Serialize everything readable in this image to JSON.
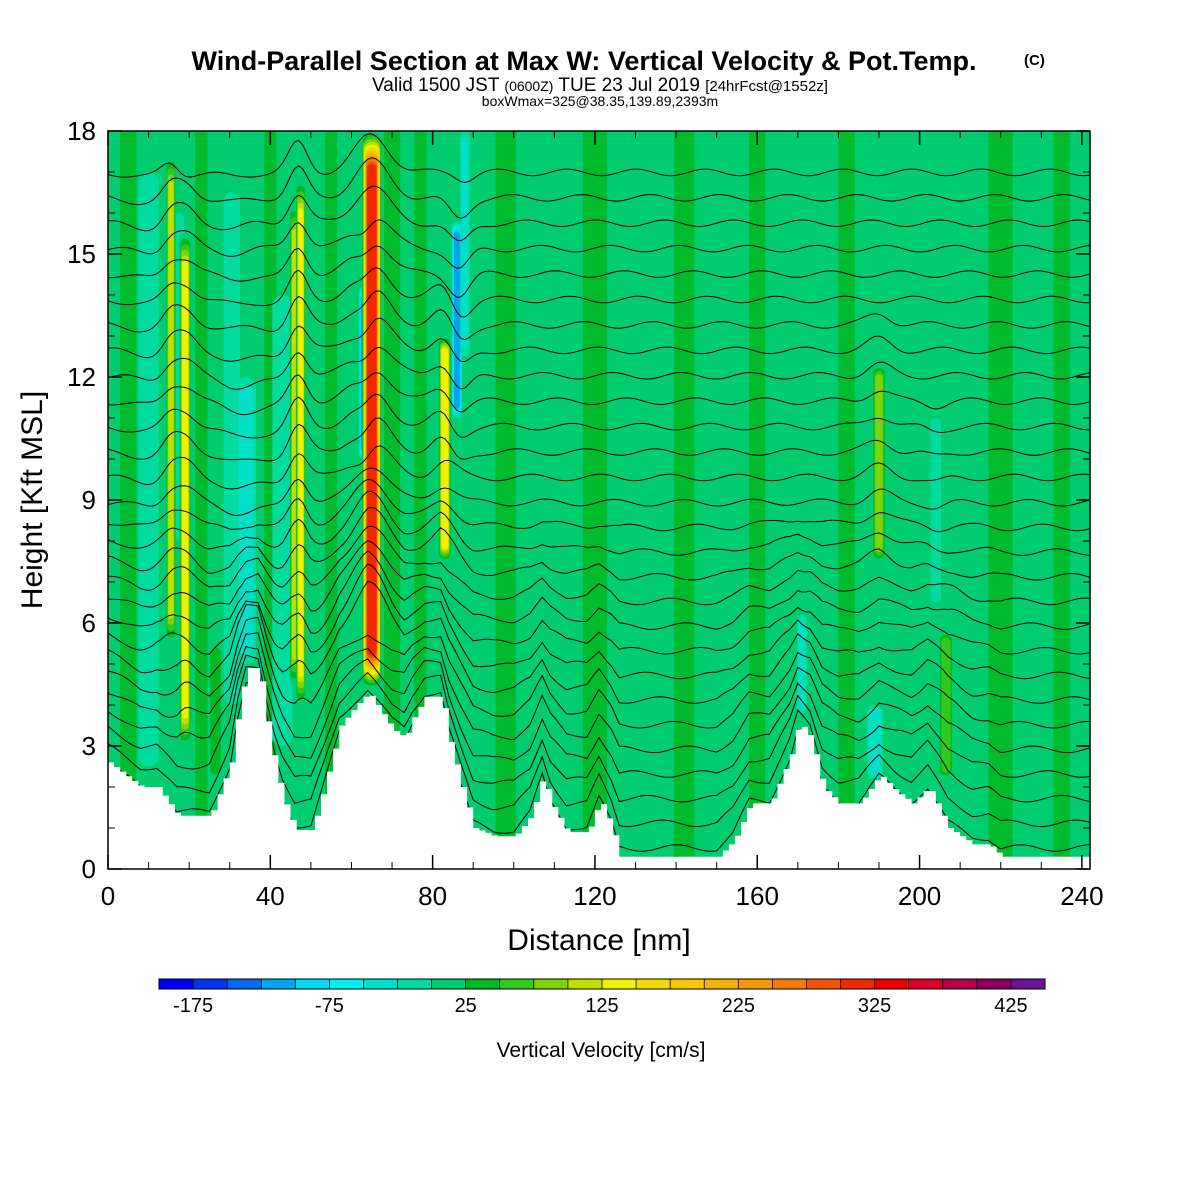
{
  "title": {
    "main": "Wind-Parallel Section at Max W: Vertical Velocity & Pot.Temp.",
    "copyright": "(C)",
    "valid_prefix": "Valid 1500 JST",
    "valid_utc": "(0600Z)",
    "valid_date": "TUE 23 Jul 2019",
    "forecast": "[24hrFcst@1552z]",
    "box_info": "boxWmax=325@38.35,139.89,2393m"
  },
  "chart_data": {
    "type": "heatmap",
    "xlabel": "Distance [nm]",
    "ylabel": "Height [Kft MSL]",
    "xlim": [
      0,
      242
    ],
    "ylim": [
      0,
      18
    ],
    "x_ticks": [
      "0",
      "40",
      "80",
      "120",
      "160",
      "200",
      "240"
    ],
    "y_ticks": [
      "0",
      "3",
      "6",
      "9",
      "12",
      "15",
      "18"
    ],
    "x_tick_values": [
      0,
      40,
      80,
      120,
      160,
      200,
      240
    ],
    "y_tick_values": [
      0,
      3,
      6,
      9,
      12,
      15,
      18
    ],
    "background_value": 0,
    "terrain_kft": [
      [
        0,
        2.6
      ],
      [
        8,
        2.0
      ],
      [
        12,
        2.0
      ],
      [
        17,
        1.3
      ],
      [
        25,
        1.3
      ],
      [
        30,
        2.6
      ],
      [
        32,
        4.0
      ],
      [
        34,
        4.9
      ],
      [
        37,
        4.9
      ],
      [
        39,
        3.6
      ],
      [
        41,
        2.5
      ],
      [
        43,
        1.7
      ],
      [
        46,
        0.95
      ],
      [
        50,
        0.95
      ],
      [
        53,
        2.0
      ],
      [
        57,
        3.5
      ],
      [
        61,
        4.0
      ],
      [
        64,
        4.3
      ],
      [
        66,
        4.0
      ],
      [
        70,
        3.4
      ],
      [
        73,
        3.2
      ],
      [
        75,
        3.7
      ],
      [
        78,
        4.2
      ],
      [
        82,
        4.2
      ],
      [
        84,
        3.1
      ],
      [
        87,
        2.0
      ],
      [
        90,
        1.0
      ],
      [
        95,
        0.8
      ],
      [
        100,
        0.8
      ],
      [
        104,
        1.3
      ],
      [
        107,
        2.3
      ],
      [
        109,
        1.6
      ],
      [
        113,
        0.9
      ],
      [
        118,
        0.9
      ],
      [
        121,
        1.7
      ],
      [
        124,
        1.0
      ],
      [
        126,
        0.3
      ],
      [
        140,
        0.3
      ],
      [
        150,
        0.3
      ],
      [
        154,
        0.7
      ],
      [
        158,
        1.6
      ],
      [
        163,
        1.6
      ],
      [
        168,
        2.8
      ],
      [
        170,
        3.6
      ],
      [
        173,
        3.2
      ],
      [
        176,
        2.0
      ],
      [
        180,
        1.6
      ],
      [
        185,
        1.6
      ],
      [
        190,
        2.3
      ],
      [
        194,
        1.9
      ],
      [
        198,
        1.6
      ],
      [
        202,
        2.0
      ],
      [
        207,
        1.0
      ],
      [
        213,
        0.6
      ],
      [
        217,
        0.6
      ],
      [
        220,
        0.3
      ],
      [
        230,
        0.3
      ],
      [
        242,
        0.3
      ]
    ],
    "updrafts": [
      {
        "x": 15.5,
        "w": 1.2,
        "z0": 5.5,
        "z1": 17.4,
        "value": 125
      },
      {
        "x": 19,
        "w": 1.4,
        "z0": 3.0,
        "z1": 15.5,
        "value": 150
      },
      {
        "x": 26.5,
        "w": 1.8,
        "z0": 2.2,
        "z1": 5.5,
        "value": 60
      },
      {
        "x": 46,
        "w": 1.2,
        "z0": 4.5,
        "z1": 16.2,
        "value": 125
      },
      {
        "x": 47.5,
        "w": 1.2,
        "z0": 4.0,
        "z1": 16.8,
        "value": 150
      },
      {
        "x": 65,
        "w": 2.4,
        "z0": 4.4,
        "z1": 18.0,
        "value": 325
      },
      {
        "x": 83,
        "w": 1.6,
        "z0": 7.5,
        "z1": 13.0,
        "value": 150
      },
      {
        "x": 190,
        "w": 1.6,
        "z0": 7.5,
        "z1": 12.3,
        "value": 100
      },
      {
        "x": 206.5,
        "w": 1.8,
        "z0": 2.2,
        "z1": 5.8,
        "value": 75
      }
    ],
    "downdrafts": [
      {
        "x": 10,
        "w": 2.5,
        "z0": 2.5,
        "z1": 17.0,
        "value": -40
      },
      {
        "x": 17.5,
        "w": 1.3,
        "z0": 8.0,
        "z1": 16.0,
        "value": -40
      },
      {
        "x": 30.5,
        "w": 2.0,
        "z0": 4.0,
        "z1": 16.5,
        "value": -40
      },
      {
        "x": 34,
        "w": 2.5,
        "z0": 5.0,
        "z1": 12.0,
        "value": -60
      },
      {
        "x": 43,
        "w": 2.5,
        "z0": 3.0,
        "z1": 14.0,
        "value": -40
      },
      {
        "x": 63,
        "w": 1.2,
        "z0": 10.0,
        "z1": 14.2,
        "value": -125
      },
      {
        "x": 86,
        "w": 1.3,
        "z0": 11.0,
        "z1": 15.8,
        "value": -140
      },
      {
        "x": 88,
        "w": 1.2,
        "z0": 12.5,
        "z1": 18.0,
        "value": -60
      },
      {
        "x": 171,
        "w": 1.2,
        "z0": 3.8,
        "z1": 6.2,
        "value": -50
      },
      {
        "x": 189,
        "w": 2.0,
        "z0": 2.2,
        "z1": 4.0,
        "value": -50
      },
      {
        "x": 204,
        "w": 1.3,
        "z0": 6.5,
        "z1": 11.0,
        "value": -40
      }
    ],
    "mild_updraft_bands": [
      {
        "x": 5,
        "w": 4,
        "value": 30
      },
      {
        "x": 23,
        "w": 3,
        "value": 30
      },
      {
        "x": 40,
        "w": 3,
        "value": 30
      },
      {
        "x": 55,
        "w": 3,
        "value": 30
      },
      {
        "x": 70,
        "w": 4,
        "value": 30
      },
      {
        "x": 77,
        "w": 3,
        "value": 30
      },
      {
        "x": 98,
        "w": 5,
        "value": 30
      },
      {
        "x": 120,
        "w": 6,
        "value": 30
      },
      {
        "x": 142,
        "w": 5,
        "value": 30
      },
      {
        "x": 160,
        "w": 4,
        "value": 30
      },
      {
        "x": 182,
        "w": 4,
        "value": 30
      },
      {
        "x": 220,
        "w": 6,
        "value": 30
      },
      {
        "x": 235,
        "w": 4,
        "value": 30
      }
    ],
    "theta_contours": {
      "count": 28,
      "lowest_kft": 0.25,
      "spacing_kft": 0.62
    },
    "colorbar": {
      "label": "Vertical Velocity [cm/s]",
      "min": -200,
      "step": 25,
      "tick_labels": [
        "-175",
        "-75",
        "25",
        "125",
        "225",
        "325",
        "425"
      ],
      "tick_values": [
        -175,
        -75,
        25,
        125,
        225,
        325,
        425
      ],
      "colors": [
        "#0000f5",
        "#0036f0",
        "#006cf0",
        "#00a4f0",
        "#00d8f5",
        "#00f0f0",
        "#00e0c8",
        "#00dca0",
        "#00cc70",
        "#00b820",
        "#33c81e",
        "#7ed20a",
        "#c0e000",
        "#f0f000",
        "#f5dc00",
        "#f5c800",
        "#f5b400",
        "#f59a00",
        "#f57c00",
        "#f55400",
        "#f02800",
        "#f00000",
        "#dc0028",
        "#b4004b",
        "#8c0064",
        "#6e1496"
      ]
    }
  }
}
